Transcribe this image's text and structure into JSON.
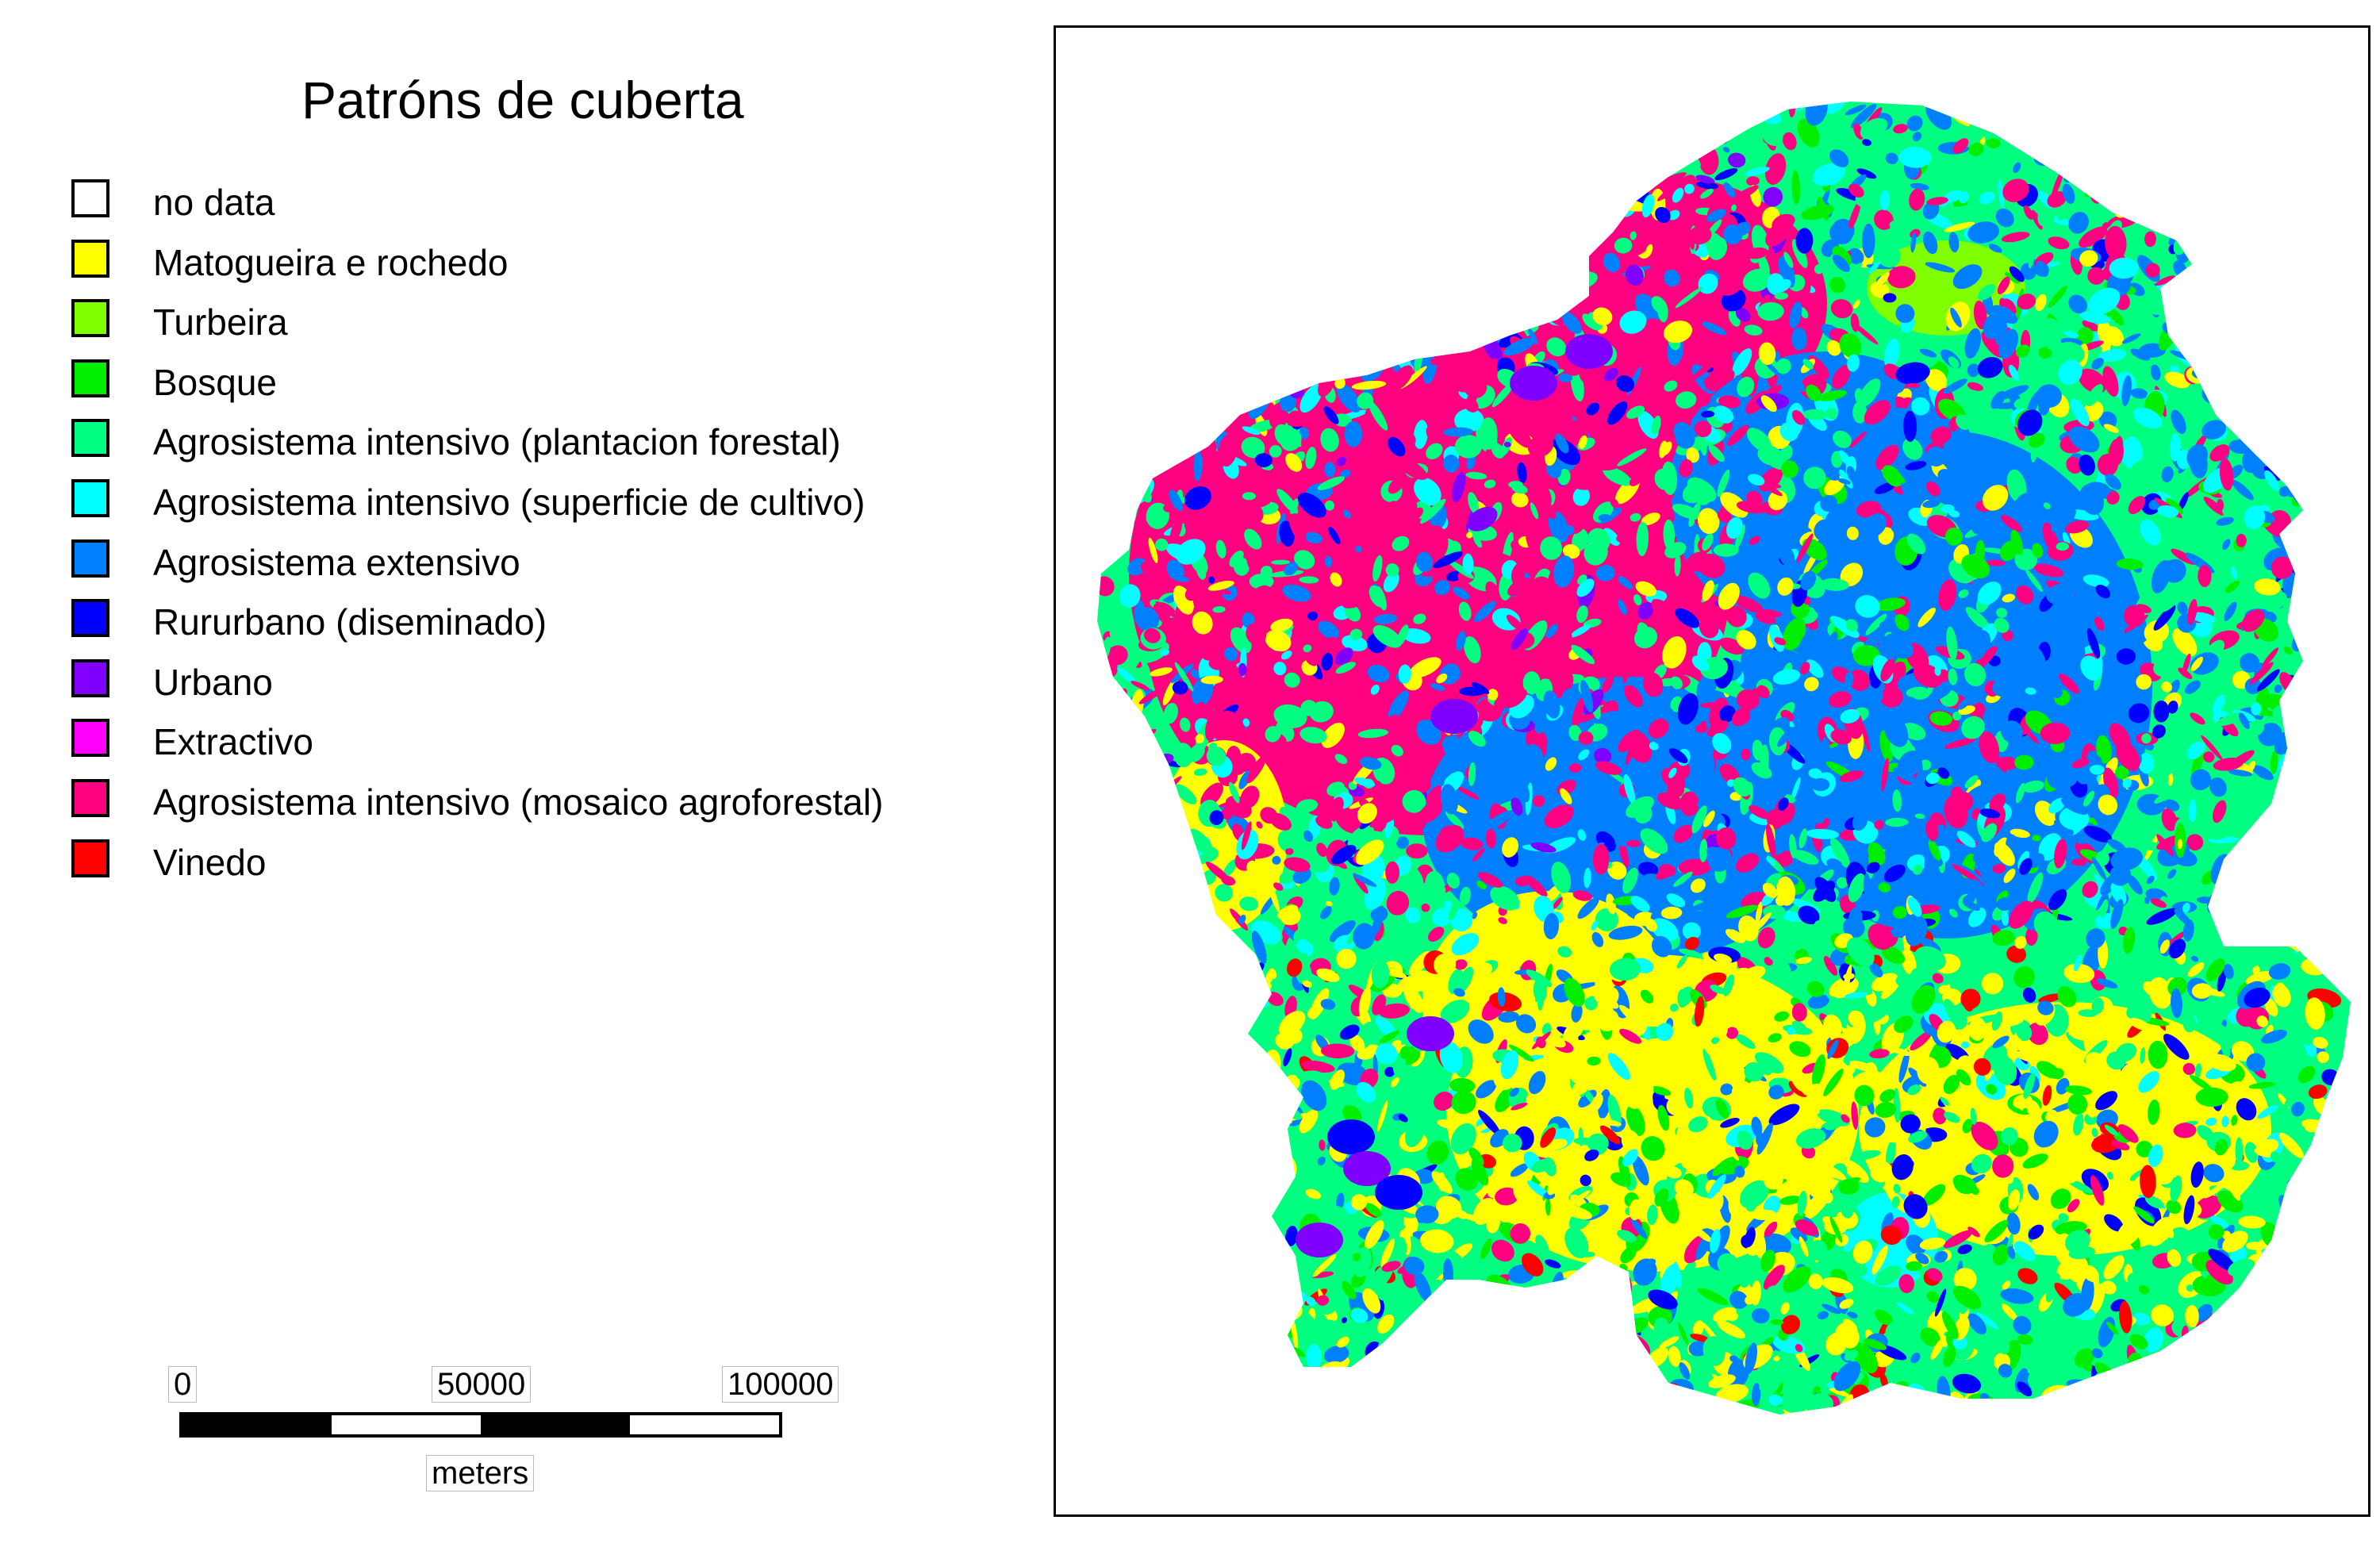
{
  "title": "Patróns de cuberta",
  "legend": [
    {
      "label": "no data",
      "color": "#ffffff"
    },
    {
      "label": "Matogueira e rochedo",
      "color": "#ffff00"
    },
    {
      "label": "Turbeira",
      "color": "#80ff00"
    },
    {
      "label": "Bosque",
      "color": "#00ee00"
    },
    {
      "label": "Agrosistema intensivo (plantacion forestal)",
      "color": "#00ff80"
    },
    {
      "label": "Agrosistema intensivo (superficie de cultivo)",
      "color": "#00ffff"
    },
    {
      "label": "Agrosistema extensivo",
      "color": "#0080ff"
    },
    {
      "label": "Rururbano (diseminado)",
      "color": "#0000ff"
    },
    {
      "label": "Urbano",
      "color": "#8000ff"
    },
    {
      "label": "Extractivo",
      "color": "#ff00ff"
    },
    {
      "label": "Agrosistema intensivo (mosaico agroforestal)",
      "color": "#ff0080"
    },
    {
      "label": "Vinedo",
      "color": "#ff0000"
    }
  ],
  "scale": {
    "ticks": [
      "0",
      "50000",
      "100000"
    ],
    "unit": "meters"
  }
}
